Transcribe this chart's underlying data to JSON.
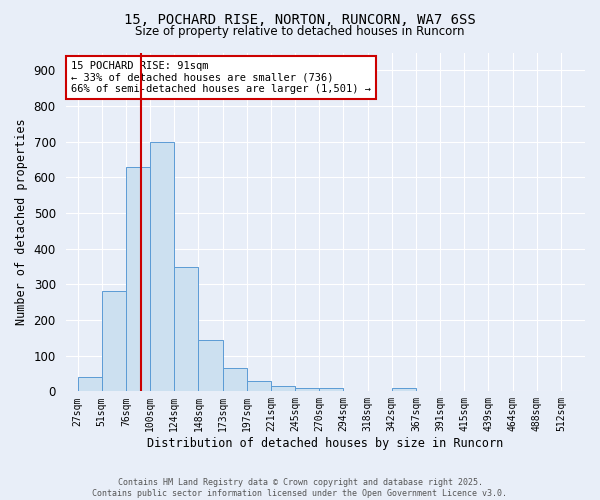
{
  "title1": "15, POCHARD RISE, NORTON, RUNCORN, WA7 6SS",
  "title2": "Size of property relative to detached houses in Runcorn",
  "xlabel": "Distribution of detached houses by size in Runcorn",
  "ylabel": "Number of detached properties",
  "categories": [
    "27sqm",
    "51sqm",
    "76sqm",
    "100sqm",
    "124sqm",
    "148sqm",
    "173sqm",
    "197sqm",
    "221sqm",
    "245sqm",
    "270sqm",
    "294sqm",
    "318sqm",
    "342sqm",
    "367sqm",
    "391sqm",
    "415sqm",
    "439sqm",
    "464sqm",
    "488sqm",
    "512sqm"
  ],
  "values": [
    40,
    280,
    630,
    700,
    350,
    145,
    65,
    30,
    15,
    10,
    8,
    0,
    0,
    8,
    0,
    0,
    0,
    0,
    0,
    0,
    0
  ],
  "bar_color": "#cce0f0",
  "bar_edge_color": "#5b9bd5",
  "bar_alpha": 1.0,
  "vline_color": "#cc0000",
  "annotation_text": "15 POCHARD RISE: 91sqm\n← 33% of detached houses are smaller (736)\n66% of semi-detached houses are larger (1,501) →",
  "annotation_box_color": "#ffffff",
  "annotation_box_edge_color": "#cc0000",
  "ylim": [
    0,
    950
  ],
  "yticks": [
    0,
    100,
    200,
    300,
    400,
    500,
    600,
    700,
    800,
    900
  ],
  "background_color": "#e8eef8",
  "footer1": "Contains HM Land Registry data © Crown copyright and database right 2025.",
  "footer2": "Contains public sector information licensed under the Open Government Licence v3.0.",
  "title_fontsize": 10,
  "subtitle_fontsize": 8.5
}
